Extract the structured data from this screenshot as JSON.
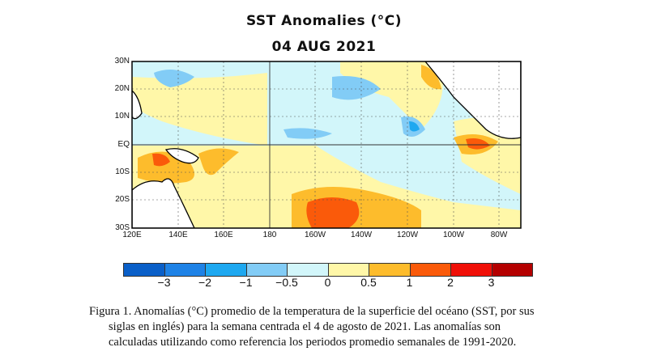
{
  "title": "SST Anomalies (°C)",
  "date": "04 AUG 2021",
  "lat_labels": [
    "30N",
    "20N",
    "10N",
    "EQ",
    "10S",
    "20S",
    "30S"
  ],
  "lon_labels": [
    "120E",
    "140E",
    "160E",
    "180",
    "160W",
    "140W",
    "120W",
    "100W",
    "80W"
  ],
  "colorbar": {
    "colors": [
      "#0a5fc8",
      "#1e82e6",
      "#1ea8f0",
      "#82ccf6",
      "#d2f6fa",
      "#fff7a8",
      "#fdbc2c",
      "#fa5a0a",
      "#f01008",
      "#b40000"
    ],
    "labels": [
      "−3",
      "−2",
      "−1",
      "−0.5",
      "0",
      "0.5",
      "1",
      "2",
      "3"
    ]
  },
  "caption": {
    "line1": "Figura 1. Anomalías (°C) promedio de la temperatura de la superficie del océano (SST, por sus",
    "line2": "siglas en inglés) para la semana centrada el 4 de agosto de 2021. Las anomalías son",
    "line3": "calculadas utilizando como referencia los periodos promedio semanales de 1991-2020."
  }
}
